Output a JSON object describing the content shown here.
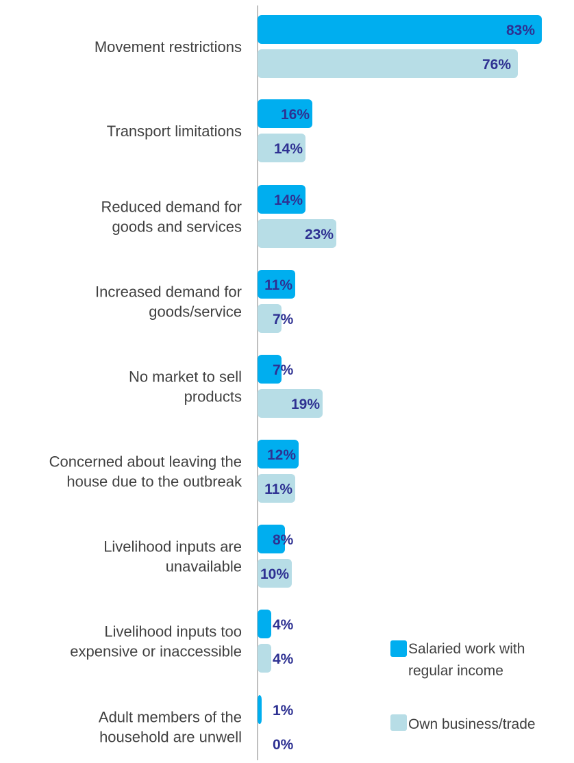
{
  "chart_data": {
    "type": "bar",
    "orientation": "horizontal",
    "categories": [
      [
        "Movement restrictions"
      ],
      [
        "Transport limitations"
      ],
      [
        "Reduced demand for",
        "goods and services"
      ],
      [
        "Increased demand for",
        "goods/service"
      ],
      [
        "No market to sell",
        "products"
      ],
      [
        "Concerned about leaving the",
        "house due to the outbreak"
      ],
      [
        "Livelihood inputs are",
        "unavailable"
      ],
      [
        "Livelihood inputs too",
        "expensive or inaccessible"
      ],
      [
        "Adult members of the",
        "household are unwell"
      ]
    ],
    "series": [
      {
        "name": "Salaried work with regular income",
        "legend_lines": [
          "Salaried work with",
          "regular income"
        ],
        "color": "#00aeef",
        "values": [
          83,
          16,
          14,
          11,
          7,
          12,
          8,
          4,
          1
        ],
        "labels": [
          "83%",
          "16%",
          "14%",
          "11%",
          "7%",
          "12%",
          "8%",
          "4%",
          "1%"
        ]
      },
      {
        "name": "Own business/trade",
        "legend_lines": [
          "Own business/trade"
        ],
        "color": "#b7dde6",
        "values": [
          76,
          14,
          23,
          7,
          19,
          11,
          10,
          4,
          0
        ],
        "labels": [
          "76%",
          "14%",
          "23%",
          "7%",
          "19%",
          "11%",
          "10%",
          "4%",
          "0%"
        ]
      }
    ],
    "xlim": [
      0,
      100
    ],
    "grid": false,
    "legend_position": "bottom-right",
    "label_color": "#2e3192",
    "axis_color": "#bfbfbf"
  }
}
